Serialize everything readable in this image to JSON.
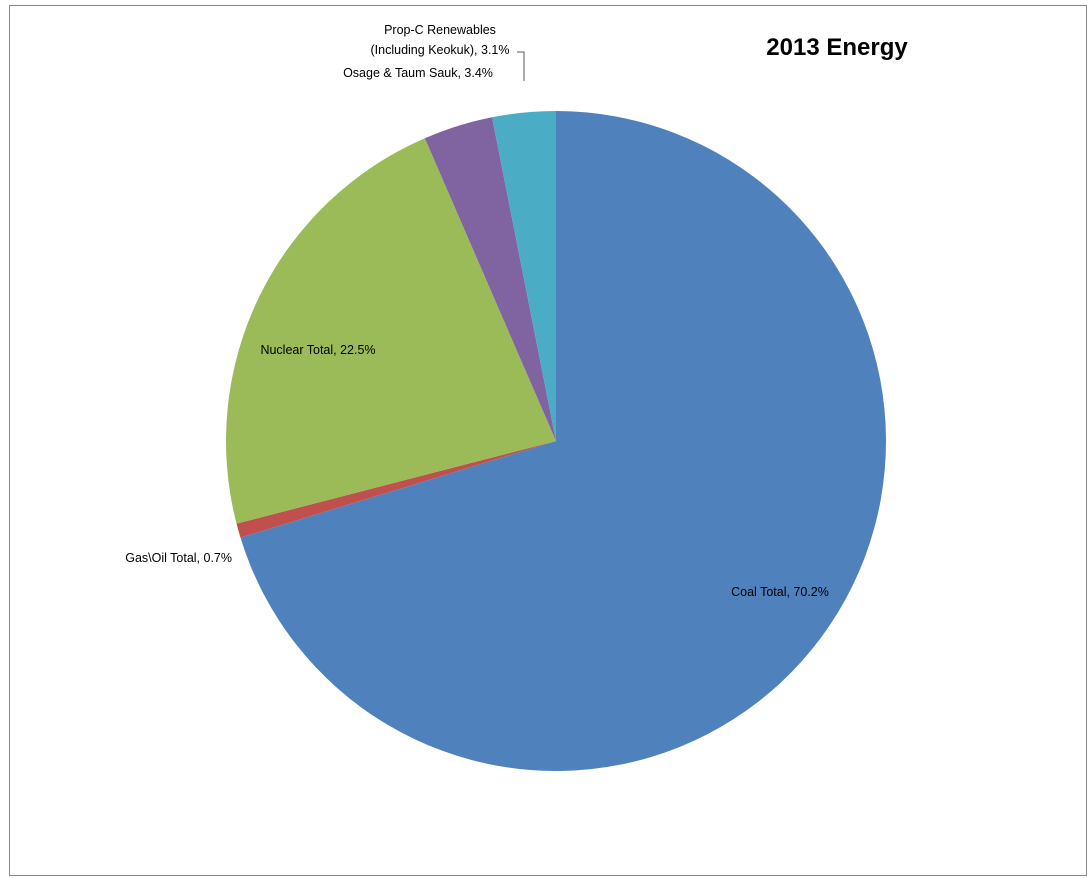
{
  "chart_data": {
    "type": "pie",
    "title": "2013 Energy",
    "start_angle_deg": 0,
    "direction": "clockwise",
    "slices": [
      {
        "name": "Coal Total",
        "value": 70.2,
        "label": "Coal Total, 70.2%",
        "color": "#4F81BD"
      },
      {
        "name": "Gas\\Oil Total",
        "value": 0.7,
        "label": "Gas\\Oil Total, 0.7%",
        "color": "#C0504D"
      },
      {
        "name": "Nuclear Total",
        "value": 22.5,
        "label": "Nuclear Total, 22.5%",
        "color": "#9BBB59"
      },
      {
        "name": "Osage & Taum Sauk",
        "value": 3.4,
        "label": "Osage & Taum Sauk, 3.4%",
        "color": "#8064A2"
      },
      {
        "name": "Prop-C Renewables (Including Keokuk)",
        "value": 3.1,
        "label_lines": [
          "Prop-C Renewables",
          "(Including Keokuk), 3.1%"
        ],
        "color": "#4BACC6"
      }
    ]
  }
}
